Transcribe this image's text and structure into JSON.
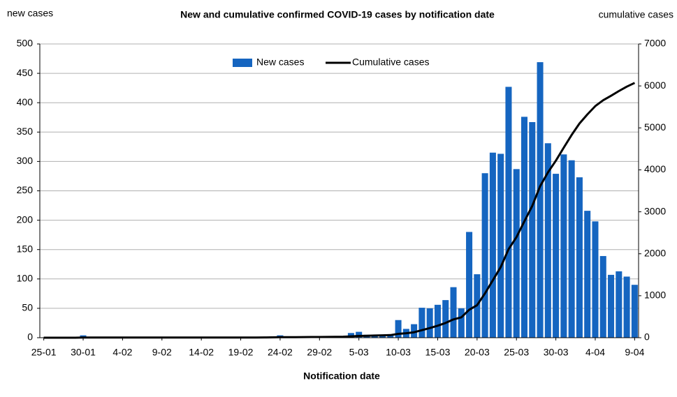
{
  "chart_data": {
    "type": "bar_line",
    "title": "New and cumulative confirmed COVID-19 cases by notification date",
    "ylabel": "new cases",
    "y2label": "cumulative cases",
    "xlabel": "Notification date",
    "categories": [
      "25-01",
      null,
      null,
      null,
      null,
      "30-01",
      null,
      null,
      null,
      null,
      "4-02",
      null,
      null,
      null,
      null,
      "9-02",
      null,
      null,
      null,
      null,
      "14-02",
      null,
      null,
      null,
      null,
      "19-02",
      null,
      null,
      null,
      null,
      "24-02",
      null,
      null,
      null,
      null,
      "29-02",
      null,
      null,
      null,
      null,
      "5-03",
      null,
      null,
      null,
      null,
      "10-03",
      null,
      null,
      null,
      null,
      "15-03",
      null,
      null,
      null,
      null,
      "20-03",
      null,
      null,
      null,
      null,
      "25-03",
      null,
      null,
      null,
      null,
      "30-03",
      null,
      null,
      null,
      null,
      "4-04",
      null,
      null,
      null,
      null,
      "9-04"
    ],
    "series": [
      {
        "name": "New cases",
        "color": "#1565c0",
        "axis": "y",
        "values": [
          0,
          0,
          0,
          0,
          0,
          4,
          0,
          0,
          0,
          0,
          0,
          0,
          0,
          0,
          0,
          0,
          0,
          0,
          0,
          0,
          0,
          0,
          0,
          0,
          0,
          0,
          0,
          1,
          1,
          2,
          4,
          1,
          1,
          1,
          1,
          1,
          2,
          2,
          3,
          8,
          10,
          5,
          5,
          5,
          4,
          30,
          15,
          23,
          51,
          50,
          56,
          64,
          86,
          50,
          180,
          108,
          280,
          315,
          313,
          427,
          287,
          376,
          367,
          469,
          331,
          279,
          312,
          302,
          273,
          216,
          198,
          139,
          107,
          113,
          104,
          90
        ]
      },
      {
        "name": "Cumulative cases",
        "color": "#000000",
        "axis": "y2",
        "values": [
          0,
          0,
          0,
          0,
          0,
          4,
          4,
          4,
          4,
          4,
          4,
          4,
          4,
          4,
          4,
          4,
          4,
          4,
          4,
          4,
          4,
          4,
          4,
          4,
          4,
          4,
          4,
          5,
          6,
          8,
          12,
          13,
          14,
          15,
          16,
          17,
          19,
          21,
          24,
          32,
          42,
          47,
          52,
          57,
          61,
          91,
          106,
          129,
          180,
          230,
          286,
          350,
          436,
          486,
          666,
          774,
          1054,
          1369,
          1682,
          2109,
          2396,
          2772,
          3139,
          3608,
          3939,
          4218,
          4530,
          4832,
          5105,
          5321,
          5519,
          5658,
          5765,
          5878,
          5982,
          6072
        ]
      }
    ],
    "ylim": [
      0,
      500
    ],
    "yticks": [
      0,
      50,
      100,
      150,
      200,
      250,
      300,
      350,
      400,
      450,
      500
    ],
    "y2lim": [
      0,
      7000
    ],
    "y2ticks": [
      0,
      1000,
      2000,
      3000,
      4000,
      5000,
      6000,
      7000
    ],
    "grid": true,
    "legend": "top"
  }
}
